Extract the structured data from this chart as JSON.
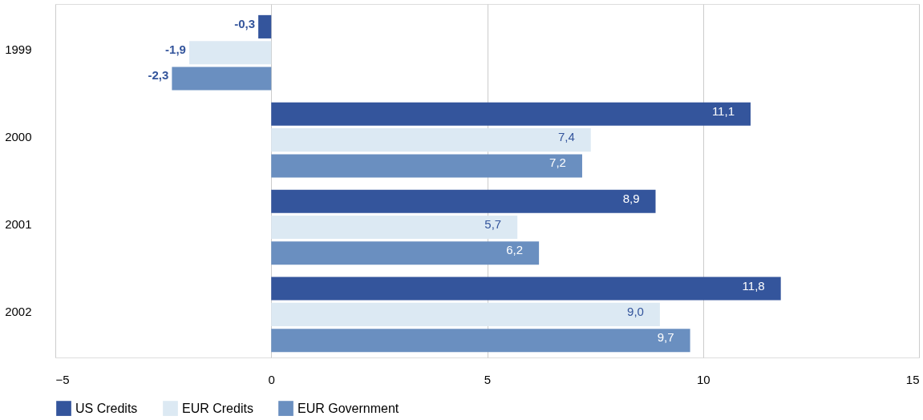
{
  "chart_data": {
    "type": "bar",
    "orientation": "horizontal",
    "categories": [
      "1999",
      "2000",
      "2001",
      "2002"
    ],
    "series": [
      {
        "name": "US Credits",
        "color": "#34559c",
        "values": [
          -0.3,
          11.1,
          8.9,
          11.8
        ],
        "value_labels": [
          "-0,3",
          "11,1",
          "8,9",
          "11,8"
        ]
      },
      {
        "name": "EUR Credits",
        "color": "#dce9f3",
        "values": [
          -1.9,
          7.4,
          5.7,
          9.0
        ],
        "value_labels": [
          "-1,9",
          "7,4",
          "5,7",
          "9,0"
        ]
      },
      {
        "name": "EUR Government",
        "color": "#6a8fc0",
        "values": [
          -2.3,
          7.2,
          6.2,
          9.7
        ],
        "value_labels": [
          "-2,3",
          "7,2",
          "6,2",
          "9,7"
        ]
      }
    ],
    "xlim": [
      -5,
      15
    ],
    "xticks": [
      -5,
      0,
      5,
      10,
      15
    ],
    "grid": "x",
    "legend": "bottom left"
  }
}
